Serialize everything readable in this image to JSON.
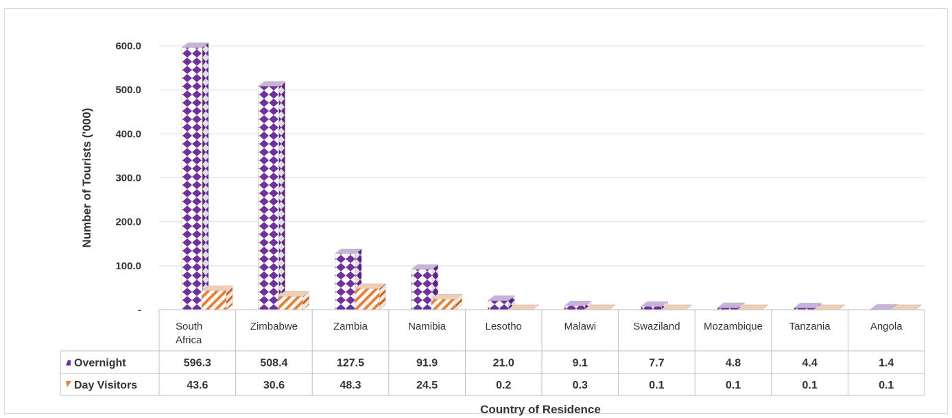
{
  "chart_data": {
    "type": "bar",
    "ylabel": "Number of Tourists ('000)",
    "xlabel": "Country of Residence",
    "ylim": [
      0,
      600
    ],
    "yticks": [
      {
        "value": 0,
        "label": "-"
      },
      {
        "value": 100,
        "label": "100.0"
      },
      {
        "value": 200,
        "label": "200.0"
      },
      {
        "value": 300,
        "label": "300.0"
      },
      {
        "value": 400,
        "label": "400.0"
      },
      {
        "value": 500,
        "label": "500.0"
      },
      {
        "value": 600,
        "label": "600.0"
      }
    ],
    "grid": true,
    "categories": [
      [
        "South",
        "Africa"
      ],
      [
        "Zimbabwe"
      ],
      [
        "Zambia"
      ],
      [
        "Namibia"
      ],
      [
        "Lesotho"
      ],
      [
        "Malawi"
      ],
      [
        "Swaziland"
      ],
      [
        "Mozambique"
      ],
      [
        "Tanzania"
      ],
      [
        "Angola"
      ]
    ],
    "series": [
      {
        "name": "Overnight",
        "color": "#7030a0",
        "pattern": "diamonds",
        "values": [
          596.3,
          508.4,
          127.5,
          91.9,
          21.0,
          9.1,
          7.7,
          4.8,
          4.4,
          1.4
        ],
        "labels": [
          "596.3",
          "508.4",
          "127.5",
          "91.9",
          "21.0",
          "9.1",
          "7.7",
          "4.8",
          "4.4",
          "1.4"
        ]
      },
      {
        "name": "Day Visitors",
        "color": "#ed7d31",
        "pattern": "diagonal-stripes",
        "values": [
          43.6,
          30.6,
          48.3,
          24.5,
          0.2,
          0.3,
          0.1,
          0.1,
          0.1,
          0.1
        ],
        "labels": [
          "43.6",
          "30.6",
          "48.3",
          "24.5",
          "0.2",
          "0.3",
          "0.1",
          "0.1",
          "0.1",
          "0.1"
        ]
      }
    ],
    "legend": "data-table"
  }
}
